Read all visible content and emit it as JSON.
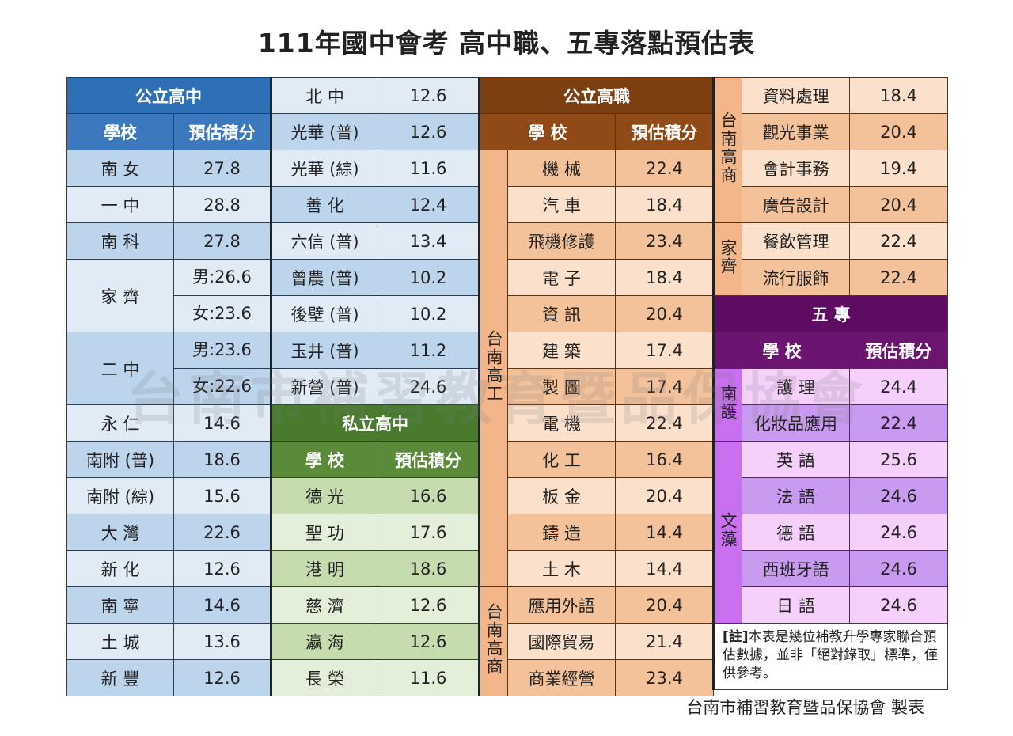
{
  "title": "111年國中會考 高中職、五專落點預估表",
  "watermark": "台南市補習教育暨品保協會",
  "credit": "台南市補習教育暨品保協會 製表",
  "col_school": "學 校",
  "col_score": "預估積分",
  "public_high": {
    "header": "公立高中",
    "col_school": "學校",
    "rows": [
      {
        "school": "南 女",
        "score": "27.8"
      },
      {
        "school": "一 中",
        "score": "28.8"
      },
      {
        "school": "南 科",
        "score": "27.8"
      },
      {
        "school": "家 齊",
        "score_m": "男:26.6",
        "score_f": "女:23.6"
      },
      {
        "school": "二 中",
        "score_m": "男:23.6",
        "score_f": "女:22.6"
      },
      {
        "school": "永 仁",
        "score": "14.6"
      },
      {
        "school": "南附 (普)",
        "score": "18.6"
      },
      {
        "school": "南附 (綜)",
        "score": "15.6"
      },
      {
        "school": "大 灣",
        "score": "22.6"
      },
      {
        "school": "新 化",
        "score": "12.6"
      },
      {
        "school": "南 寧",
        "score": "14.6"
      },
      {
        "school": "土 城",
        "score": "13.6"
      },
      {
        "school": "新 豐",
        "score": "12.6"
      }
    ],
    "rows2": [
      {
        "school": "北 中",
        "score": "12.6"
      },
      {
        "school": "光華 (普)",
        "score": "12.6"
      },
      {
        "school": "光華 (綜)",
        "score": "11.6"
      },
      {
        "school": "善 化",
        "score": "12.4"
      },
      {
        "school": "六信 (普)",
        "score": "13.4"
      },
      {
        "school": "曾農 (普)",
        "score": "10.2"
      },
      {
        "school": "後壁 (普)",
        "score": "10.2"
      },
      {
        "school": "玉井 (普)",
        "score": "11.2"
      },
      {
        "school": "新營 (普)",
        "score": "24.6"
      }
    ]
  },
  "private_high": {
    "header": "私立高中",
    "rows": [
      {
        "school": "德 光",
        "score": "16.6"
      },
      {
        "school": "聖 功",
        "score": "17.6"
      },
      {
        "school": "港 明",
        "score": "18.6"
      },
      {
        "school": "慈 濟",
        "score": "12.6"
      },
      {
        "school": "瀛 海",
        "score": "12.6"
      },
      {
        "school": "長 榮",
        "score": "11.6"
      }
    ]
  },
  "public_vocational": {
    "header": "公立高職",
    "group1": "台南高工",
    "rows1": [
      {
        "dept": "機 械",
        "score": "22.4"
      },
      {
        "dept": "汽 車",
        "score": "18.4"
      },
      {
        "dept": "飛機修護",
        "score": "23.4"
      },
      {
        "dept": "電 子",
        "score": "18.4"
      },
      {
        "dept": "資 訊",
        "score": "20.4"
      },
      {
        "dept": "建 築",
        "score": "17.4"
      },
      {
        "dept": "製 圖",
        "score": "17.4"
      },
      {
        "dept": "電 機",
        "score": "22.4"
      },
      {
        "dept": "化 工",
        "score": "16.4"
      },
      {
        "dept": "板 金",
        "score": "20.4"
      },
      {
        "dept": "鑄 造",
        "score": "14.4"
      },
      {
        "dept": "土 木",
        "score": "14.4"
      }
    ],
    "group2": "台南高商",
    "rows2": [
      {
        "dept": "應用外語",
        "score": "20.4"
      },
      {
        "dept": "國際貿易",
        "score": "21.4"
      },
      {
        "dept": "商業經營",
        "score": "23.4"
      }
    ],
    "group3": "台南高商",
    "rows3": [
      {
        "dept": "資料處理",
        "score": "18.4"
      },
      {
        "dept": "觀光事業",
        "score": "20.4"
      },
      {
        "dept": "會計事務",
        "score": "19.4"
      },
      {
        "dept": "廣告設計",
        "score": "20.4"
      }
    ],
    "group4": "家齊",
    "rows4": [
      {
        "dept": "餐飲管理",
        "score": "22.4"
      },
      {
        "dept": "流行服飾",
        "score": "22.4"
      }
    ]
  },
  "five_year": {
    "header": "五 專",
    "group1": "南護",
    "rows1": [
      {
        "dept": "護 理",
        "score": "24.4"
      },
      {
        "dept": "化妝品應用",
        "score": "22.4"
      }
    ],
    "group2": "文藻",
    "rows2": [
      {
        "dept": "英 語",
        "score": "25.6"
      },
      {
        "dept": "法 語",
        "score": "24.6"
      },
      {
        "dept": "德 語",
        "score": "24.6"
      },
      {
        "dept": "西班牙語",
        "score": "24.6"
      },
      {
        "dept": "日 語",
        "score": "24.6"
      }
    ]
  },
  "note": {
    "bold": "[註]",
    "text": "本表是幾位補教升學專家聯合預估數據，並非「絕對錄取」標準，僅供參考。"
  }
}
